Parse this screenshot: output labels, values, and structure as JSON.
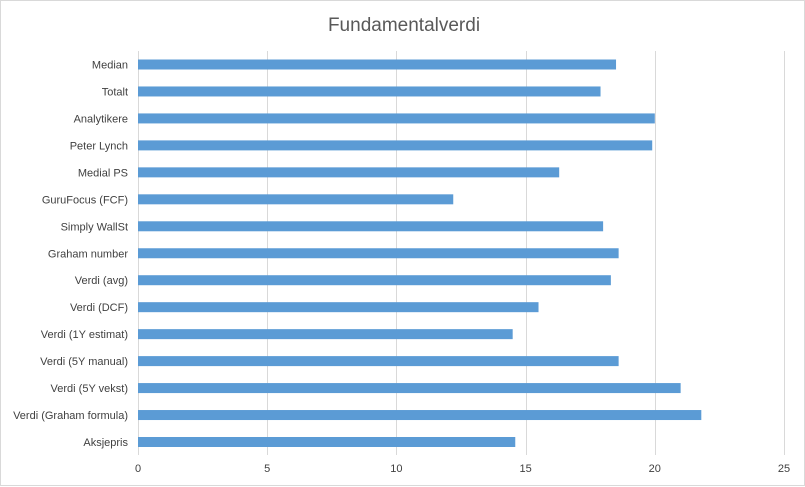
{
  "chart_data": {
    "type": "bar",
    "orientation": "horizontal",
    "title": "Fundamentalverdi",
    "xlabel": "",
    "ylabel": "",
    "categories": [
      "Median",
      "Totalt",
      "Analytikere",
      "Peter Lynch",
      "Medial PS",
      "GuruFocus (FCF)",
      "Simply WallSt",
      "Graham number",
      "Verdi (avg)",
      "Verdi (DCF)",
      "Verdi (1Y estimat)",
      "Verdi (5Y manual)",
      "Verdi (5Y vekst)",
      "Verdi (Graham formula)",
      "Aksjepris"
    ],
    "values": [
      18.5,
      17.9,
      20.0,
      19.9,
      16.3,
      12.2,
      18.0,
      18.6,
      18.3,
      15.5,
      14.5,
      18.6,
      21.0,
      21.8,
      14.6
    ],
    "xlim": [
      0,
      25
    ],
    "xticks": [
      0,
      5,
      10,
      15,
      20,
      25
    ],
    "bar_color": "#5b9bd5",
    "grid": true,
    "legend": "none"
  }
}
